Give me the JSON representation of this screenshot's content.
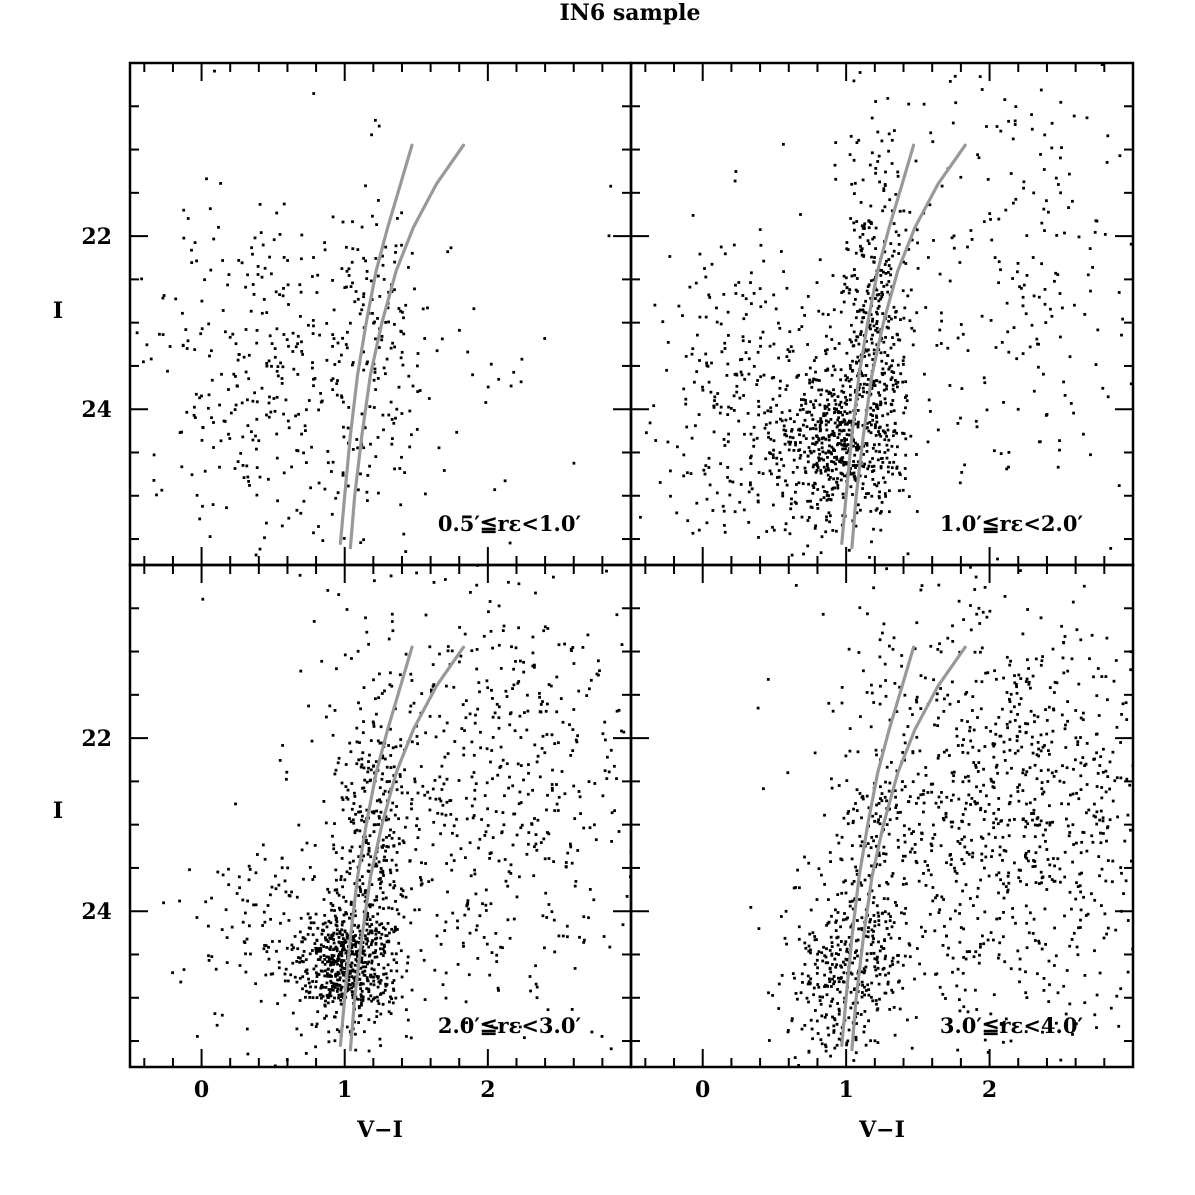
{
  "figure": {
    "title": "IN6 sample",
    "colors": {
      "points": "#000000",
      "isochrone": "#999999",
      "frame": "#000000"
    }
  },
  "chart_data": {
    "type": "scatter",
    "title": "IN6 sample",
    "xlabel": "V−I",
    "ylabel": "I",
    "xlim": [
      -0.5,
      3.0
    ],
    "ylim": [
      25.8,
      20.0
    ],
    "y_inverted": true,
    "xticks_major": [
      0,
      1,
      2
    ],
    "xticks_labels": [
      "0",
      "1",
      "2"
    ],
    "yticks_major": [
      22,
      24
    ],
    "yticks_labels": [
      "22",
      "24"
    ],
    "grid": false,
    "layout": "2x2 shared axes",
    "isochrones": [
      {
        "name": "",
        "x": [
          0.97,
          1.0,
          1.04,
          1.09,
          1.15,
          1.22,
          1.3,
          1.39,
          1.47
        ],
        "y": [
          25.55,
          25.0,
          24.3,
          23.6,
          23.0,
          22.4,
          21.9,
          21.4,
          20.95
        ]
      },
      {
        "name": "",
        "x": [
          1.04,
          1.07,
          1.12,
          1.18,
          1.26,
          1.36,
          1.48,
          1.64,
          1.83
        ],
        "y": [
          25.6,
          25.0,
          24.3,
          23.6,
          23.0,
          22.4,
          21.9,
          21.4,
          20.95
        ]
      }
    ],
    "panels": [
      {
        "label": "0.5′≦rε<1.0′",
        "distribution": "sparse",
        "clumps": [
          {
            "cx": 0.5,
            "cy": 23.6,
            "sx": 0.45,
            "sy": 0.95,
            "n": 320
          },
          {
            "cx": 1.2,
            "cy": 23.3,
            "sx": 0.2,
            "sy": 1.0,
            "n": 130
          },
          {
            "cx": 1.3,
            "cy": 23.5,
            "sx": 1.0,
            "sy": 1.4,
            "n": 60
          }
        ]
      },
      {
        "label": "1.0′≦rε<2.0′",
        "distribution": "dense red clump",
        "clumps": [
          {
            "cx": 0.95,
            "cy": 24.4,
            "sx": 0.22,
            "sy": 0.45,
            "n": 520
          },
          {
            "cx": 1.2,
            "cy": 22.9,
            "sx": 0.13,
            "sy": 1.0,
            "n": 380
          },
          {
            "cx": 0.35,
            "cy": 23.9,
            "sx": 0.35,
            "sy": 0.9,
            "n": 300
          },
          {
            "cx": 2.1,
            "cy": 22.6,
            "sx": 0.6,
            "sy": 1.3,
            "n": 260
          }
        ]
      },
      {
        "label": "2.0′≦rε<3.0′",
        "distribution": "dense clump + field",
        "clumps": [
          {
            "cx": 1.0,
            "cy": 24.6,
            "sx": 0.17,
            "sy": 0.35,
            "n": 560
          },
          {
            "cx": 1.2,
            "cy": 23.3,
            "sx": 0.12,
            "sy": 0.9,
            "n": 300
          },
          {
            "cx": 0.55,
            "cy": 24.3,
            "sx": 0.3,
            "sy": 0.6,
            "n": 140
          },
          {
            "cx": 2.0,
            "cy": 22.5,
            "sx": 0.6,
            "sy": 1.4,
            "n": 620
          }
        ]
      },
      {
        "label": "3.0′≦rε<4.0′",
        "distribution": "field dominated",
        "clumps": [
          {
            "cx": 0.95,
            "cy": 24.8,
            "sx": 0.2,
            "sy": 0.45,
            "n": 300
          },
          {
            "cx": 1.15,
            "cy": 23.6,
            "sx": 0.15,
            "sy": 0.8,
            "n": 150
          },
          {
            "cx": 2.1,
            "cy": 22.8,
            "sx": 0.6,
            "sy": 1.3,
            "n": 1000
          }
        ]
      }
    ]
  }
}
